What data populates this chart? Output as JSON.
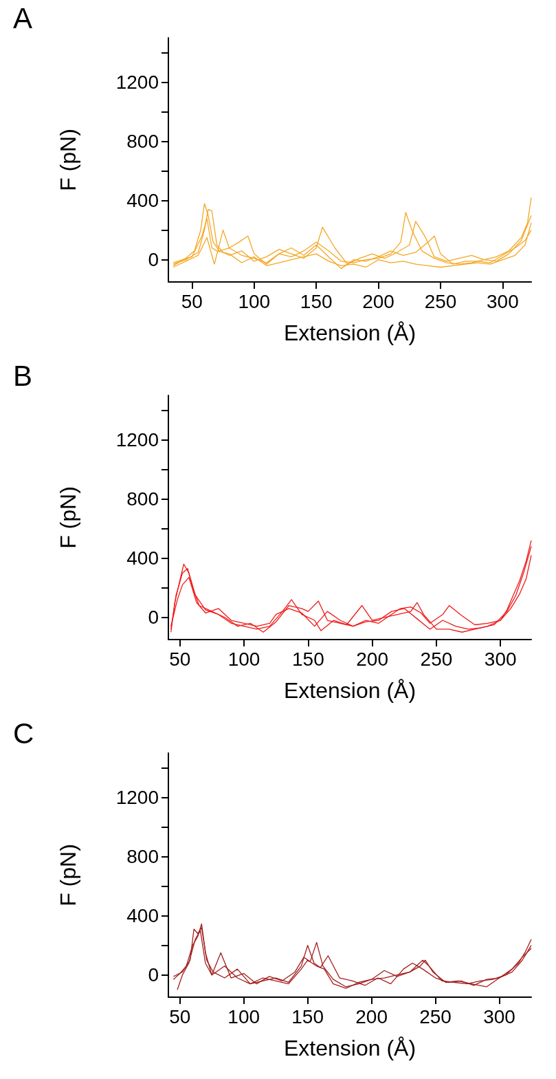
{
  "chart_data": [
    {
      "type": "line",
      "title": "A",
      "xlabel": "Extension (Å)",
      "ylabel": "F (pN)",
      "xlim": [
        31,
        323
      ],
      "xticks": [
        50,
        100,
        150,
        200,
        250,
        300
      ],
      "ylim": [
        -150,
        1500
      ],
      "yticks": [
        0,
        {
          "value": 200,
          "label": null
        },
        400,
        {
          "value": 600,
          "label": null
        },
        800,
        {
          "value": 1000,
          "label": null
        },
        1200,
        {
          "value": 1400,
          "label": null
        }
      ],
      "series": [
        {
          "color": "#f5a623",
          "x": [
            35,
            45,
            52,
            57,
            60,
            63,
            67,
            72,
            80,
            90,
            100,
            110,
            120,
            130,
            140,
            150,
            160,
            170,
            180,
            190,
            200,
            210,
            218,
            222,
            227,
            235,
            245,
            255,
            265,
            275,
            285,
            295,
            305,
            315,
            320,
            323
          ],
          "values": [
            -40,
            10,
            60,
            200,
            380,
            300,
            120,
            60,
            80,
            30,
            10,
            -20,
            40,
            20,
            60,
            120,
            60,
            -10,
            -20,
            0,
            10,
            40,
            120,
            320,
            200,
            60,
            10,
            -20,
            -30,
            -20,
            0,
            20,
            60,
            150,
            250,
            420
          ]
        },
        {
          "color": "#f5a623",
          "x": [
            35,
            45,
            55,
            60,
            63,
            66,
            70,
            75,
            80,
            90,
            100,
            110,
            120,
            130,
            140,
            150,
            155,
            165,
            175,
            185,
            195,
            205,
            215,
            225,
            230,
            238,
            245,
            255,
            265,
            275,
            285,
            295,
            305,
            315,
            323
          ],
          "values": [
            -30,
            0,
            50,
            200,
            340,
            330,
            100,
            50,
            30,
            60,
            -10,
            20,
            70,
            40,
            10,
            80,
            220,
            80,
            -30,
            10,
            40,
            10,
            50,
            100,
            260,
            150,
            20,
            -10,
            10,
            30,
            0,
            -10,
            40,
            130,
            300
          ]
        },
        {
          "color": "#f5a623",
          "x": [
            35,
            45,
            55,
            62,
            68,
            75,
            80,
            88,
            95,
            100,
            110,
            120,
            130,
            140,
            150,
            160,
            170,
            180,
            190,
            200,
            210,
            220,
            230,
            240,
            245,
            250,
            260,
            270,
            280,
            290,
            300,
            310,
            318,
            323
          ],
          "values": [
            -50,
            -10,
            30,
            150,
            -30,
            200,
            80,
            120,
            160,
            40,
            -30,
            40,
            80,
            30,
            100,
            20,
            -60,
            0,
            -10,
            20,
            60,
            30,
            50,
            120,
            160,
            40,
            -30,
            -10,
            -10,
            -20,
            30,
            80,
            130,
            200
          ]
        },
        {
          "color": "#f5a623",
          "x": [
            35,
            50,
            58,
            62,
            66,
            70,
            80,
            90,
            100,
            110,
            120,
            130,
            140,
            150,
            160,
            170,
            180,
            190,
            200,
            210,
            220,
            230,
            240,
            250,
            260,
            270,
            280,
            290,
            300,
            310,
            318,
            323
          ],
          "values": [
            -20,
            20,
            160,
            280,
            80,
            60,
            40,
            -20,
            20,
            -40,
            -20,
            0,
            20,
            40,
            -10,
            -40,
            -30,
            -50,
            0,
            -20,
            -10,
            -30,
            -40,
            -50,
            -40,
            -30,
            -20,
            -30,
            0,
            30,
            100,
            250
          ]
        }
      ]
    },
    {
      "type": "line",
      "title": "B",
      "xlabel": "Extension (Å)",
      "ylabel": "F (pN)",
      "xlim": [
        41,
        324
      ],
      "xticks": [
        50,
        100,
        150,
        200,
        250,
        300
      ],
      "ylim": [
        -150,
        1500
      ],
      "yticks": [
        0,
        {
          "value": 200,
          "label": null
        },
        400,
        {
          "value": 600,
          "label": null
        },
        800,
        {
          "value": 1000,
          "label": null
        },
        1200,
        {
          "value": 1400,
          "label": null
        }
      ],
      "series": [
        {
          "color": "#f01818",
          "x": [
            43,
            46,
            50,
            53,
            57,
            62,
            70,
            80,
            90,
            100,
            110,
            120,
            130,
            137,
            145,
            155,
            160,
            170,
            180,
            192,
            200,
            210,
            220,
            230,
            235,
            240,
            250,
            260,
            270,
            280,
            290,
            300,
            305,
            310,
            315,
            320,
            324
          ],
          "values": [
            -100,
            100,
            250,
            360,
            300,
            150,
            50,
            20,
            -40,
            -60,
            -80,
            -60,
            40,
            120,
            20,
            -20,
            -90,
            -20,
            -50,
            80,
            -20,
            0,
            20,
            40,
            100,
            20,
            -80,
            -80,
            -100,
            -80,
            -60,
            -20,
            50,
            150,
            250,
            380,
            520
          ]
        },
        {
          "color": "#f01818",
          "x": [
            43,
            47,
            52,
            56,
            60,
            65,
            75,
            85,
            95,
            105,
            115,
            125,
            135,
            145,
            150,
            158,
            165,
            175,
            185,
            195,
            205,
            215,
            225,
            235,
            245,
            255,
            265,
            275,
            285,
            295,
            305,
            312,
            318,
            324
          ],
          "values": [
            -80,
            150,
            300,
            330,
            200,
            80,
            40,
            0,
            -60,
            -40,
            -100,
            -30,
            80,
            60,
            40,
            110,
            -20,
            -40,
            -60,
            -30,
            -20,
            40,
            60,
            -10,
            -80,
            -20,
            -60,
            -80,
            -70,
            -50,
            40,
            150,
            300,
            480
          ]
        },
        {
          "color": "#f01818",
          "x": [
            43,
            48,
            52,
            57,
            63,
            70,
            80,
            90,
            100,
            110,
            120,
            125,
            135,
            145,
            155,
            165,
            175,
            185,
            195,
            205,
            215,
            222,
            230,
            238,
            245,
            255,
            260,
            270,
            280,
            290,
            300,
            308,
            315,
            320,
            324
          ],
          "values": [
            -60,
            120,
            220,
            270,
            100,
            30,
            60,
            -20,
            -40,
            -60,
            -40,
            20,
            60,
            30,
            -60,
            40,
            -20,
            -60,
            -20,
            -40,
            20,
            60,
            70,
            30,
            -40,
            20,
            80,
            10,
            -50,
            -40,
            -20,
            60,
            160,
            260,
            420
          ]
        }
      ]
    },
    {
      "type": "line",
      "title": "C",
      "xlabel": "Extension (Å)",
      "ylabel": "F (pN)",
      "xlim": [
        41,
        325
      ],
      "xticks": [
        50,
        100,
        150,
        200,
        250,
        300
      ],
      "ylim": [
        -150,
        1500
      ],
      "yticks": [
        0,
        {
          "value": 200,
          "label": null
        },
        400,
        {
          "value": 600,
          "label": null
        },
        800,
        {
          "value": 1000,
          "label": null
        },
        1200,
        {
          "value": 1400,
          "label": null
        }
      ],
      "series": [
        {
          "color": "#a31c1c",
          "x": [
            45,
            50,
            55,
            60,
            64,
            67,
            70,
            75,
            82,
            90,
            100,
            110,
            120,
            130,
            140,
            147,
            152,
            157,
            162,
            170,
            180,
            190,
            200,
            210,
            220,
            230,
            240,
            245,
            255,
            265,
            275,
            285,
            295,
            305,
            315,
            320,
            325
          ],
          "values": [
            -30,
            10,
            60,
            200,
            260,
            345,
            150,
            0,
            150,
            -20,
            10,
            -60,
            -10,
            -40,
            20,
            120,
            90,
            220,
            60,
            -30,
            -80,
            -60,
            -30,
            30,
            -10,
            20,
            100,
            60,
            -40,
            -50,
            -60,
            -40,
            -30,
            0,
            80,
            150,
            240
          ]
        },
        {
          "color": "#a31c1c",
          "x": [
            45,
            52,
            58,
            61,
            64,
            67,
            71,
            76,
            85,
            95,
            105,
            115,
            125,
            135,
            145,
            150,
            155,
            160,
            166,
            175,
            185,
            195,
            205,
            215,
            225,
            232,
            240,
            250,
            260,
            270,
            280,
            290,
            300,
            310,
            318,
            325
          ],
          "values": [
            -10,
            20,
            100,
            310,
            280,
            320,
            100,
            20,
            -20,
            40,
            -60,
            -40,
            -20,
            -50,
            60,
            200,
            80,
            50,
            130,
            -20,
            -40,
            -70,
            -20,
            -60,
            40,
            80,
            40,
            -20,
            -50,
            -40,
            -70,
            -30,
            -20,
            20,
            100,
            200
          ]
        },
        {
          "color": "#a31c1c",
          "x": [
            48,
            52,
            57,
            62,
            66,
            70,
            75,
            85,
            95,
            105,
            115,
            125,
            135,
            145,
            150,
            157,
            163,
            170,
            180,
            190,
            200,
            210,
            220,
            230,
            238,
            242,
            248,
            258,
            268,
            278,
            290,
            300,
            310,
            318,
            325
          ],
          "values": [
            -100,
            0,
            80,
            240,
            300,
            80,
            0,
            60,
            -20,
            -60,
            -20,
            -40,
            -60,
            40,
            100,
            60,
            40,
            -60,
            -90,
            -50,
            -30,
            -20,
            0,
            20,
            60,
            100,
            20,
            -50,
            -40,
            -60,
            -80,
            -20,
            40,
            120,
            180
          ]
        }
      ]
    }
  ]
}
